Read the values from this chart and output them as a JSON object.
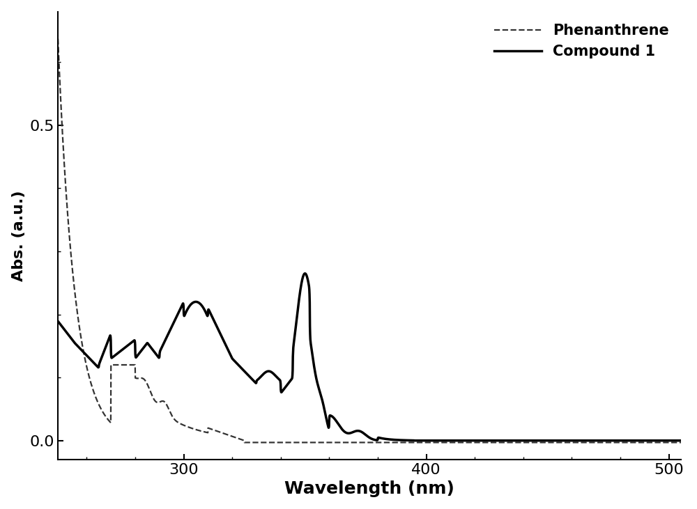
{
  "title": "",
  "xlabel": "Wavelength (nm)",
  "ylabel": "Abs. (a.u.)",
  "xlim": [
    248,
    505
  ],
  "ylim": [
    -0.03,
    0.68
  ],
  "xticks": [
    300,
    400,
    500
  ],
  "yticks": [
    0.0,
    0.5
  ],
  "legend_labels": [
    "Phenanthrene",
    "Compound 1"
  ],
  "background_color": "#ffffff",
  "phenanthrene_color": "#333333",
  "compound1_color": "#000000",
  "xlabel_fontsize": 18,
  "ylabel_fontsize": 16,
  "tick_fontsize": 16,
  "legend_fontsize": 14,
  "linewidth_dashed": 1.6,
  "linewidth_solid": 2.5
}
